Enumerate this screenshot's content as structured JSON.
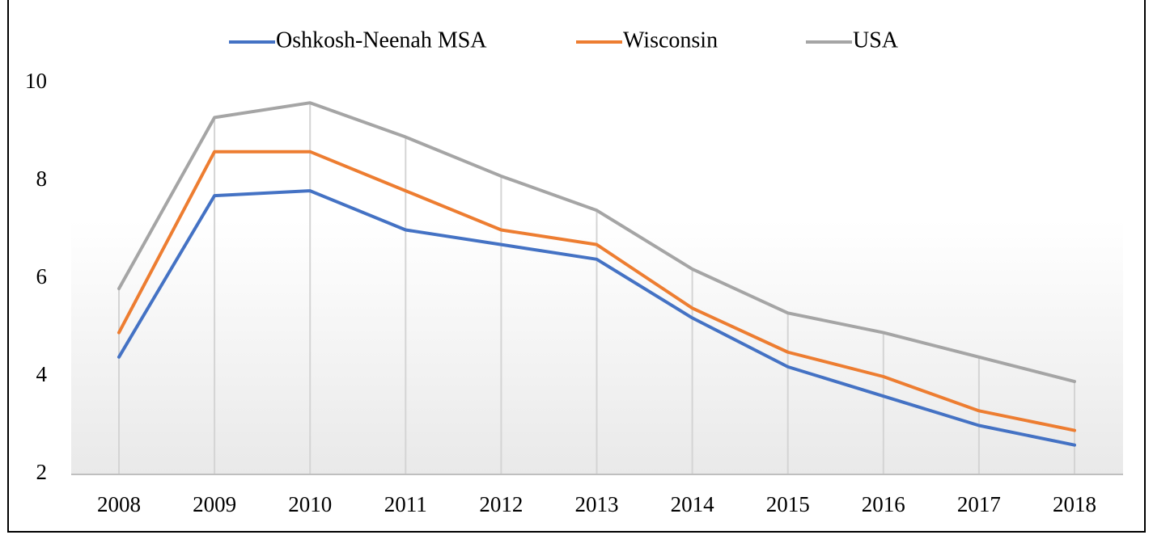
{
  "chart_data": {
    "type": "line",
    "categories": [
      "2008",
      "2009",
      "2010",
      "2011",
      "2012",
      "2013",
      "2014",
      "2015",
      "2016",
      "2017",
      "2018"
    ],
    "series": [
      {
        "name": "Oshkosh-Neenah MSA",
        "color": "#4472c4",
        "values": [
          4.4,
          7.7,
          7.8,
          7.0,
          6.7,
          6.4,
          5.2,
          4.2,
          3.6,
          3.0,
          2.6
        ]
      },
      {
        "name": "Wisconsin",
        "color": "#ed7d31",
        "values": [
          4.9,
          8.6,
          8.6,
          7.8,
          7.0,
          6.7,
          5.4,
          4.5,
          4.0,
          3.3,
          2.9
        ]
      },
      {
        "name": "USA",
        "color": "#a5a5a5",
        "values": [
          5.8,
          9.3,
          9.6,
          8.9,
          8.1,
          7.4,
          6.2,
          5.3,
          4.9,
          4.4,
          3.9
        ]
      }
    ],
    "ylim": [
      2,
      10
    ],
    "yticks": [
      2,
      4,
      6,
      8,
      10
    ],
    "legend": "top",
    "drop_lines": true
  }
}
